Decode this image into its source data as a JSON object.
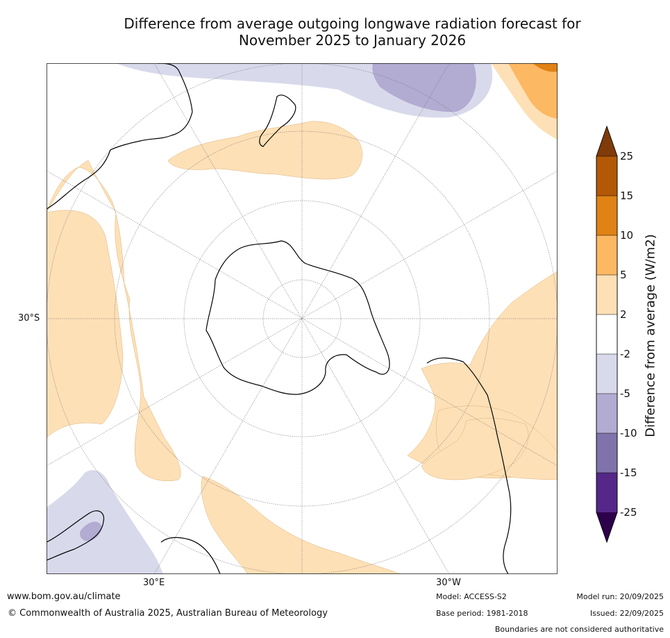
{
  "title": {
    "line1": "Difference from average outgoing longwave radiation forecast for",
    "line2": "November 2025 to January 2026"
  },
  "map": {
    "projection": "South polar stereographic",
    "labels": {
      "lat_30s": "30°S",
      "lon_30e": "30°E",
      "lon_30w": "30°W"
    }
  },
  "colorbar": {
    "title": "Difference from average (W/m2)",
    "ticks": [
      "25",
      "15",
      "10",
      "5",
      "2",
      "-2",
      "-5",
      "-10",
      "-15",
      "-25"
    ],
    "bins": [
      {
        "range": ">25",
        "color": "#7f3b08"
      },
      {
        "range": "15 to 25",
        "color": "#b35806"
      },
      {
        "range": "10 to 15",
        "color": "#e08214"
      },
      {
        "range": "5 to 10",
        "color": "#fdb863"
      },
      {
        "range": "2 to 5",
        "color": "#fee0b6"
      },
      {
        "range": "-2 to 2",
        "color": "#ffffff"
      },
      {
        "range": "-5 to -2",
        "color": "#d8daeb"
      },
      {
        "range": "-10 to -5",
        "color": "#b2abd2"
      },
      {
        "range": "-15 to -10",
        "color": "#8073ac"
      },
      {
        "range": "-25 to -15",
        "color": "#542788"
      },
      {
        "range": "<-25",
        "color": "#2d004b"
      }
    ]
  },
  "footer": {
    "website": "www.bom.gov.au/climate",
    "copyright": "© Commonwealth of Australia 2025, Australian Bureau of Meteorology",
    "model": "Model: ACCESS-S2",
    "base_period": "Base period: 1981-2018",
    "model_run": "Model run: 20/09/2025",
    "issued": "Issued: 22/09/2025",
    "disclaimer": "Boundaries are not considered authoritative"
  }
}
